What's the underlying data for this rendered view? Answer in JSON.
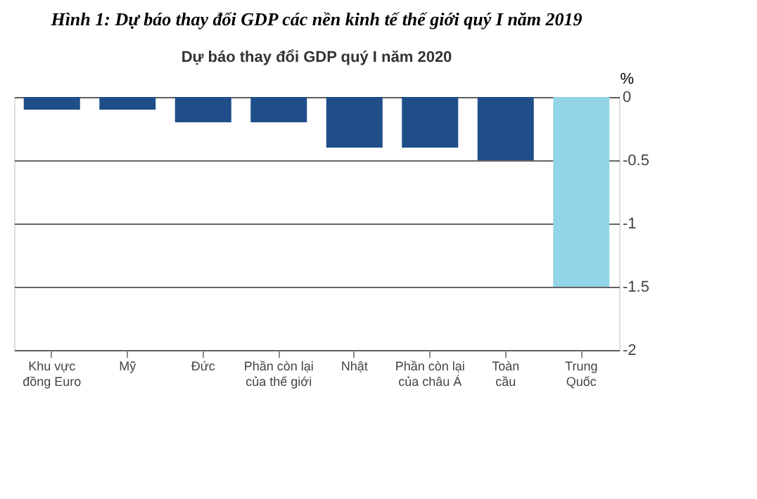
{
  "chart_data": {
    "type": "bar",
    "title": "Hình 1: Dự báo thay đổi GDP các nền kinh tế thế giới quý I năm 2019",
    "subtitle": "Dự báo thay đổi GDP quý I năm 2020",
    "ylabel": "%",
    "categories": [
      "Khu vực\nđồng Euro",
      "Mỹ",
      "Đức",
      "Phần còn lại\ncủa thế giới",
      "Nhật",
      "Phần còn lại\ncủa châu Á",
      "Toàn\ncầu",
      "Trung\nQuốc"
    ],
    "values": [
      -0.1,
      -0.1,
      -0.2,
      -0.2,
      -0.4,
      -0.4,
      -0.5,
      -1.5
    ],
    "colors": [
      "#1f4e89",
      "#1f4e89",
      "#1f4e89",
      "#1f4e89",
      "#1f4e89",
      "#1f4e89",
      "#1f4e89",
      "#92d5e6"
    ],
    "ylim": [
      -2,
      0
    ],
    "yticks": [
      0,
      -0.5,
      -1,
      -1.5,
      -2
    ],
    "grid": "y"
  }
}
